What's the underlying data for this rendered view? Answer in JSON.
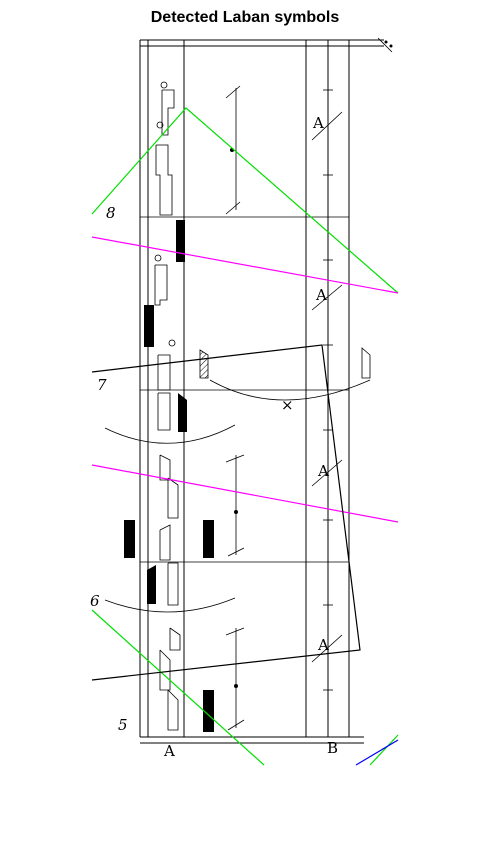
{
  "figure": {
    "title": "Detected Laban symbols",
    "staff_labels": [
      "A",
      "B"
    ],
    "measure_numbers": [
      "5",
      "6",
      "7",
      "8"
    ],
    "repeat_letter": "A",
    "cross_mark": "×",
    "colors": {
      "green": "#00e000",
      "magenta": "#ff00ff",
      "black": "#000000",
      "blue": "#0000ff"
    }
  }
}
